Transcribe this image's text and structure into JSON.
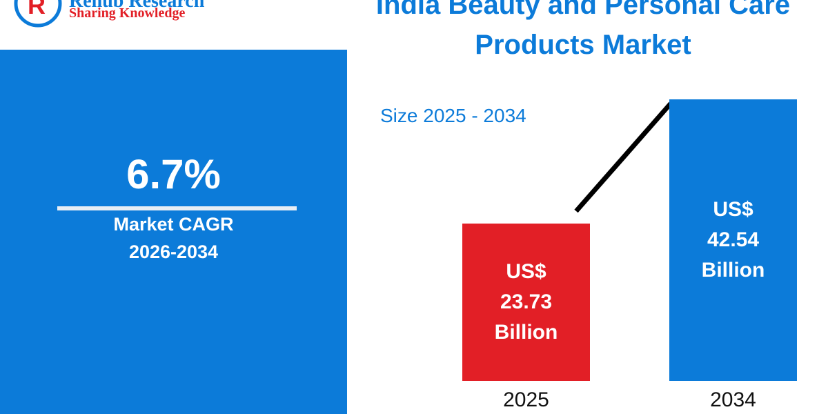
{
  "logo": {
    "name": "Renub Research",
    "tagline": "Sharing Knowledge"
  },
  "kpi": {
    "value": "6.7%",
    "label": "Market CAGR",
    "period": "2026-2034"
  },
  "chart_data": {
    "type": "bar",
    "title": "India Beauty and Personal Care Products Market",
    "subtitle": "Size 2025 - 2034",
    "categories": [
      "2025",
      "2034"
    ],
    "values": [
      23.73,
      42.54
    ],
    "value_labels": [
      "US$ 23.73 Billion",
      "US$ 42.54 Billion"
    ],
    "colors": [
      "#e21f26",
      "#0c7bd9"
    ],
    "ylim": [
      0,
      45
    ]
  }
}
